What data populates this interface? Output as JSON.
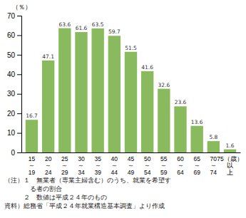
{
  "chart_data": {
    "type": "bar",
    "ylabel": "（％）",
    "categories": [
      "15\n～\n19",
      "20\n～\n24",
      "25\n～\n29",
      "30\n～\n34",
      "35\n～\n39",
      "40\n～\n44",
      "45\n～\n49",
      "50\n～\n54",
      "55\n～\n59",
      "60\n～\n64",
      "65\n～\n69",
      "70\n～\n74",
      "75（歳）\n以\n上"
    ],
    "values": [
      16.7,
      47.1,
      63.6,
      61.6,
      63.5,
      59.7,
      51.5,
      41.6,
      32.6,
      23.6,
      13.6,
      5.8,
      1.6
    ],
    "color": "#8aba5e",
    "ylim": [
      0,
      70
    ],
    "yticks": [
      0,
      10,
      20,
      30,
      40,
      50,
      60,
      70
    ],
    "grid": false,
    "data_labels": true,
    "annotations": [
      "（注）１　無業者（専業主婦含む）のうち、就業を希望す",
      "　　　　る者の割合",
      "　　　２　数値は平成２４年のもの",
      "資料）総務省「平成２４年就業構造基本調査」より作成"
    ]
  }
}
